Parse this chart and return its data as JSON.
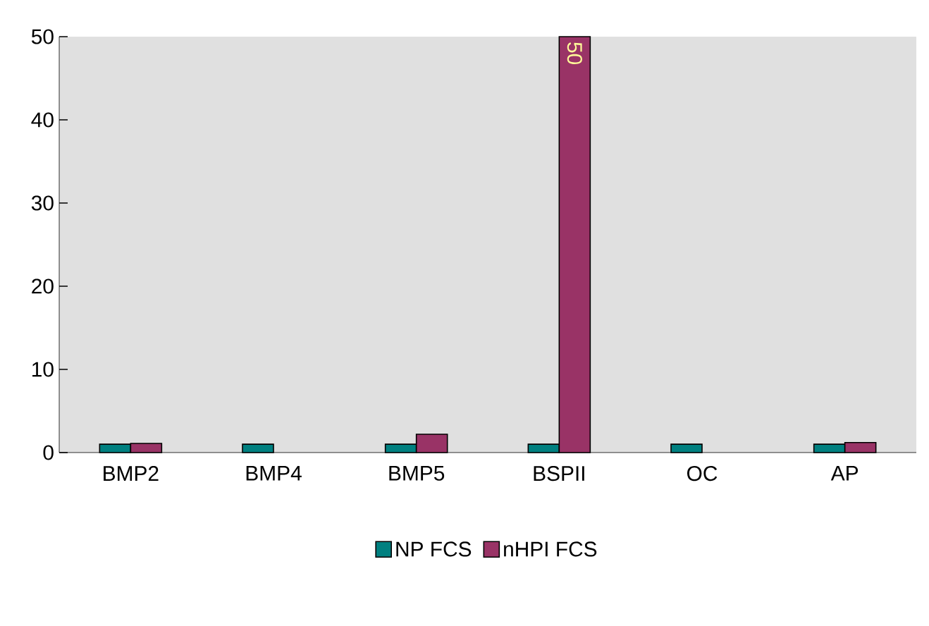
{
  "chart_data": {
    "type": "bar",
    "categories": [
      "BMP2",
      "BMP4",
      "BMP5",
      "BSPII",
      "OC",
      "AP"
    ],
    "series": [
      {
        "name": "NP FCS",
        "color": "#008080",
        "values": [
          1,
          1,
          1,
          1,
          1,
          1
        ]
      },
      {
        "name": "nHPI FCS",
        "color": "#993366",
        "values": [
          1.1,
          null,
          2.2,
          50,
          null,
          1.2
        ],
        "value_labels": [
          null,
          null,
          null,
          "50",
          null,
          null
        ]
      }
    ],
    "ylim": [
      0,
      50
    ],
    "yticks": [
      0,
      10,
      20,
      30,
      40,
      50
    ],
    "grid": false,
    "legend": "bottom"
  }
}
